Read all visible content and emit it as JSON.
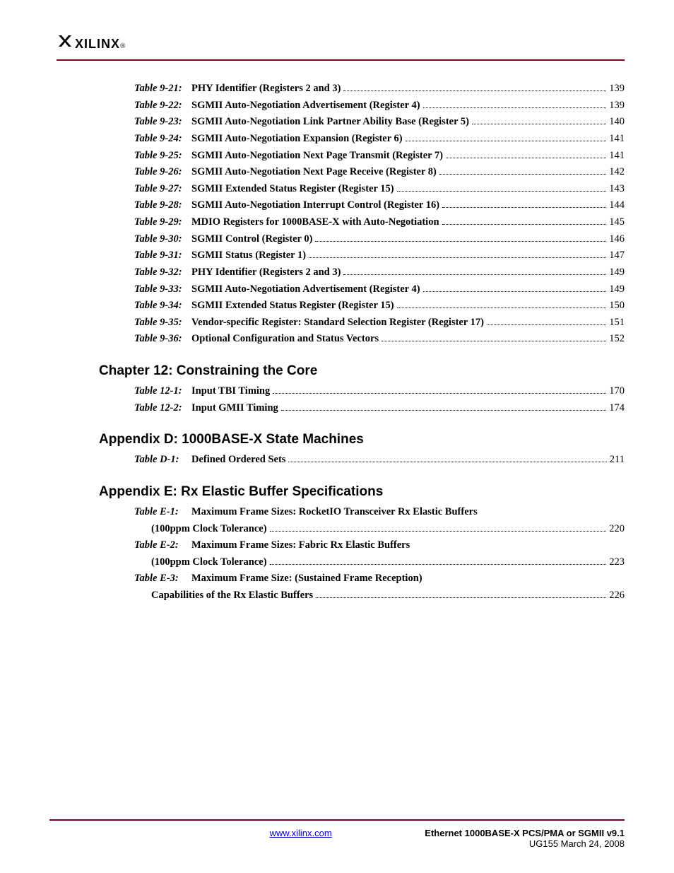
{
  "brand": {
    "logo_text": "XILINX",
    "registered": "®"
  },
  "rule_color": "#7a001e",
  "sections": [
    {
      "entries": [
        {
          "label": "Table 9-21:",
          "title": "PHY Identifier (Registers 2 and 3)",
          "page": "139"
        },
        {
          "label": "Table 9-22:",
          "title": "SGMII Auto-Negotiation Advertisement (Register 4)",
          "page": "139"
        },
        {
          "label": "Table 9-23:",
          "title": "SGMII Auto-Negotiation Link Partner Ability Base (Register 5)",
          "page": "140"
        },
        {
          "label": "Table 9-24:",
          "title": "SGMII Auto-Negotiation Expansion (Register 6)",
          "page": "141"
        },
        {
          "label": "Table 9-25:",
          "title": "SGMII Auto-Negotiation Next Page Transmit (Register 7)",
          "page": "141"
        },
        {
          "label": "Table 9-26:",
          "title": "SGMII Auto-Negotiation Next Page Receive (Register 8)",
          "page": "142"
        },
        {
          "label": "Table 9-27:",
          "title": "SGMII Extended Status Register (Register 15)",
          "page": "143"
        },
        {
          "label": "Table 9-28:",
          "title": "SGMII Auto-Negotiation Interrupt Control (Register 16)",
          "page": "144"
        },
        {
          "label": "Table 9-29:",
          "title": "MDIO Registers for 1000BASE-X with Auto-Negotiation",
          "page": "145"
        },
        {
          "label": "Table 9-30:",
          "title": "SGMII Control (Register 0)",
          "page": "146"
        },
        {
          "label": "Table 9-31:",
          "title": "SGMII Status (Register 1)",
          "page": "147"
        },
        {
          "label": "Table 9-32:",
          "title": "PHY Identifier (Registers 2 and 3)",
          "page": "149"
        },
        {
          "label": "Table 9-33:",
          "title": "SGMII Auto-Negotiation Advertisement (Register 4)",
          "page": "149"
        },
        {
          "label": "Table 9-34:",
          "title": "SGMII Extended Status Register (Register 15)",
          "page": "150"
        },
        {
          "label": "Table 9-35:",
          "title": "Vendor-specific Register: Standard Selection Register (Register 17)",
          "page": "151"
        },
        {
          "label": "Table 9-36:",
          "title": "Optional Configuration and Status Vectors",
          "page": "152"
        }
      ]
    },
    {
      "heading": "Chapter 12:  Constraining the Core",
      "entries": [
        {
          "label": "Table 12-1:",
          "title": "Input TBI Timing",
          "page": "170"
        },
        {
          "label": "Table 12-2:",
          "title": "Input GMII Timing",
          "page": "174"
        }
      ]
    },
    {
      "heading": "Appendix D:  1000BASE-X State Machines",
      "entries": [
        {
          "label": "Table D-1:",
          "title": "Defined Ordered Sets",
          "page": "211"
        }
      ]
    },
    {
      "heading": "Appendix E:  Rx Elastic Buffer Specifications",
      "entries": [
        {
          "label": "Table E-1:",
          "title": "Maximum Frame Sizes: RocketIO Transceiver Rx Elastic Buffers",
          "cont": "(100ppm Clock Tolerance)",
          "page": "220"
        },
        {
          "label": "Table E-2:",
          "title": "Maximum Frame Sizes: Fabric Rx Elastic Buffers",
          "cont": "(100ppm Clock Tolerance)",
          "page": "223"
        },
        {
          "label": "Table E-3:",
          "title": "Maximum Frame Size: (Sustained Frame Reception)",
          "cont": "Capabilities of the Rx Elastic Buffers",
          "page": "226"
        }
      ]
    }
  ],
  "footer": {
    "link_text": "www.xilinx.com",
    "doc_title": "Ethernet 1000BASE-X PCS/PMA or SGMII v9.1",
    "doc_subtitle": "UG155 March 24, 2008"
  }
}
